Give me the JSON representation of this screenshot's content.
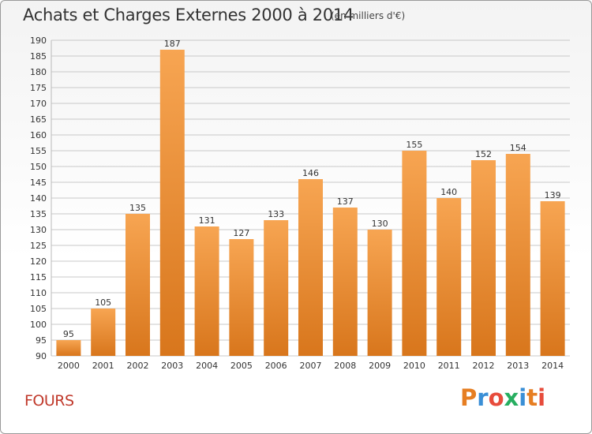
{
  "chart_data": {
    "type": "bar",
    "title": "Achats et Charges Externes 2000 à 2014",
    "subtitle": "(en milliers d'€)",
    "categories": [
      "2000",
      "2001",
      "2002",
      "2003",
      "2004",
      "2005",
      "2006",
      "2007",
      "2008",
      "2009",
      "2010",
      "2011",
      "2012",
      "2013",
      "2014"
    ],
    "values": [
      95,
      105,
      135,
      187,
      131,
      127,
      133,
      146,
      137,
      130,
      155,
      140,
      152,
      154,
      139
    ],
    "ylim": [
      90,
      190
    ],
    "yticks": [
      90,
      95,
      100,
      105,
      110,
      115,
      120,
      125,
      130,
      135,
      140,
      145,
      150,
      155,
      160,
      165,
      170,
      175,
      180,
      185,
      190
    ],
    "grid": true,
    "colors": {
      "bar_light": "#f7a552",
      "bar_dark": "#d8761c",
      "grid": "#c8c8c8"
    }
  },
  "footer": {
    "commune": "FOURS",
    "logo_text": "Proxiti",
    "logo_colors": [
      "#e67e22",
      "#3a8fd6",
      "#e74c3c",
      "#27ae60",
      "#3a8fd6",
      "#e67e22",
      "#e74c3c"
    ]
  }
}
